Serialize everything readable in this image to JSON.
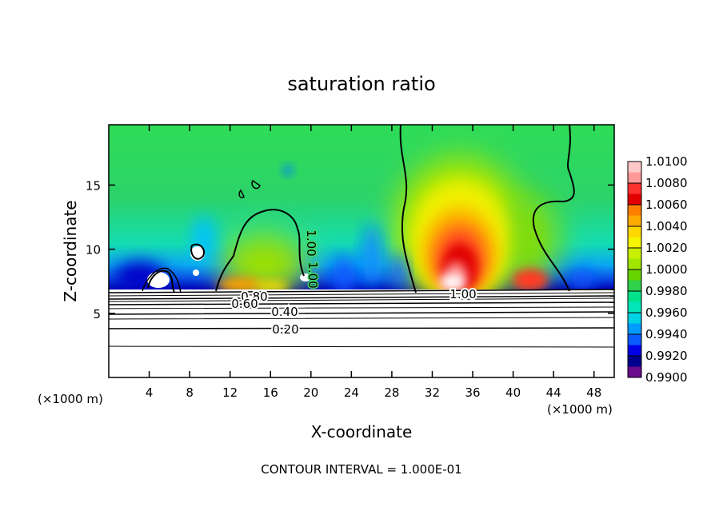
{
  "chart_data": {
    "type": "heatmap",
    "title": "saturation ratio",
    "xlabel": "X-coordinate",
    "ylabel": "Z-coordinate",
    "x_units": "(×1000 m)",
    "x_units_right": "(×1000 m)",
    "xlim": [
      0,
      50
    ],
    "ylim": [
      0,
      19.7
    ],
    "x_ticks": [
      "4",
      "8",
      "12",
      "16",
      "20",
      "24",
      "28",
      "32",
      "36",
      "40",
      "44",
      "48"
    ],
    "y_ticks": [
      "5",
      "10",
      "15"
    ],
    "colorbar": {
      "levels": [
        "1.0100",
        "1.0080",
        "1.0060",
        "1.0040",
        "1.0020",
        "1.0000",
        "0.9980",
        "0.9960",
        "0.9940",
        "0.9920",
        "0.9900"
      ],
      "colors": [
        "#ffc8c8",
        "#ff9a9a",
        "#ff3030",
        "#e00000",
        "#ff7f00",
        "#ffaa00",
        "#ffd800",
        "#f5f500",
        "#c8f000",
        "#a0e600",
        "#66d400",
        "#2fd24a",
        "#00e28a",
        "#00e6b8",
        "#00d2e6",
        "#009cff",
        "#0a5cff",
        "#0000e6",
        "#00008c",
        "#6a0a8c"
      ]
    },
    "contour_labels": [
      "1.00",
      "1.00",
      "1.00",
      "0.80",
      "0.60",
      "0.40",
      "0.20"
    ],
    "note": "CONTOUR INTERVAL = 1.000E-01"
  }
}
